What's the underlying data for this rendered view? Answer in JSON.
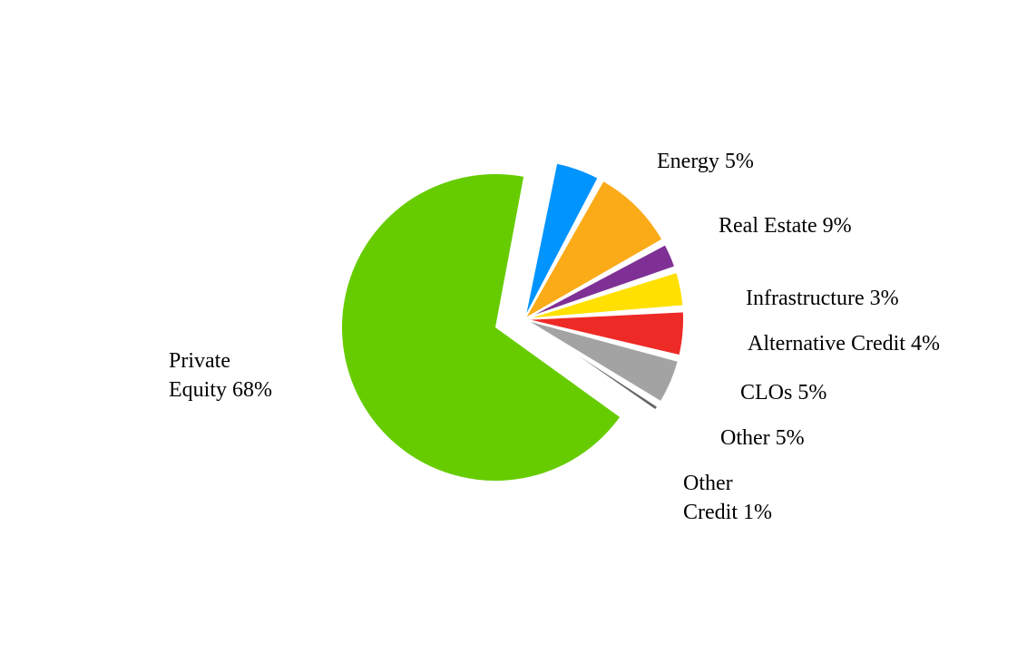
{
  "chart_data": {
    "type": "pie",
    "slices": [
      {
        "label": "Private Equity 68%",
        "lines": [
          "Private",
          "Equity 68%"
        ],
        "value": 68,
        "color": "#66cc00",
        "exploded": false
      },
      {
        "label": "Energy 5%",
        "lines": [
          "Energy 5%"
        ],
        "value": 5,
        "color": "#0094ff",
        "exploded": true
      },
      {
        "label": "Real Estate 9%",
        "lines": [
          "Real Estate 9%"
        ],
        "value": 9,
        "color": "#fbab18",
        "exploded": true
      },
      {
        "label": "Infrastructure 3%",
        "lines": [
          "Infrastructure 3%"
        ],
        "value": 3,
        "color": "#7f3095",
        "exploded": true
      },
      {
        "label": "Alternative Credit 4%",
        "lines": [
          "Alternative Credit 4%"
        ],
        "value": 4,
        "color": "#ffe000",
        "exploded": true
      },
      {
        "label": "CLOs 5%",
        "lines": [
          "CLOs 5%"
        ],
        "value": 5,
        "color": "#ee2a26",
        "exploded": true
      },
      {
        "label": "Other 5%",
        "lines": [
          "Other 5%"
        ],
        "value": 5,
        "color": "#a3a3a3",
        "exploded": true
      },
      {
        "label": "Other Credit 1%",
        "lines": [
          "Other",
          "Credit 1%"
        ],
        "value": 1,
        "color": "#666666",
        "exploded": true
      }
    ]
  }
}
